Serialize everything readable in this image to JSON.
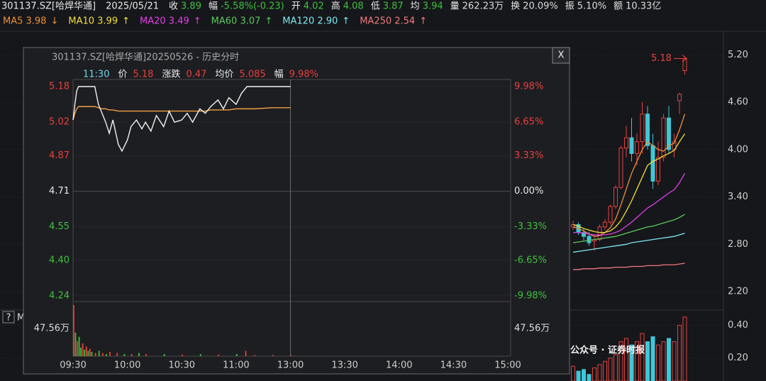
{
  "header": {
    "symbol": "301137.SZ[哈焊华通]",
    "date": "2025/05/21",
    "fields": [
      {
        "label": "收",
        "value": "3.89",
        "color": "#3ec13e"
      },
      {
        "label": "幅",
        "value": "-5.58%(-0.23)",
        "color": "#3ec13e"
      },
      {
        "label": "开",
        "value": "4.02",
        "color": "#3ec13e"
      },
      {
        "label": "高",
        "value": "4.08",
        "color": "#3ec13e"
      },
      {
        "label": "低",
        "value": "3.87",
        "color": "#3ec13e"
      },
      {
        "label": "均",
        "value": "3.94",
        "color": "#3ec13e"
      },
      {
        "label": "量",
        "value": "262.23万",
        "color": "#dddddd"
      },
      {
        "label": "换",
        "value": "20.09%",
        "color": "#dddddd"
      },
      {
        "label": "振",
        "value": "5.10%",
        "color": "#dddddd"
      },
      {
        "label": "额",
        "value": "10.33亿",
        "color": "#dddddd"
      }
    ]
  },
  "ma_legend": [
    {
      "label": "MA5 3.98",
      "arrow": "↓",
      "color": "#f0903a",
      "values": [
        3.02,
        3.0,
        2.97,
        2.93,
        2.9,
        2.91,
        2.95,
        3.01,
        3.12,
        3.3,
        3.5,
        3.7,
        3.85,
        4.0,
        4.1,
        4.05,
        4.0,
        3.98,
        4.05,
        4.08,
        4.25,
        4.45
      ]
    },
    {
      "label": "MA10 3.99",
      "arrow": "↑",
      "color": "#f2e03a",
      "values": [
        3.05,
        3.03,
        3.0,
        2.98,
        2.96,
        2.95,
        2.95,
        2.97,
        3.02,
        3.1,
        3.22,
        3.35,
        3.5,
        3.65,
        3.8,
        3.85,
        3.88,
        3.92,
        3.95,
        3.99,
        4.1,
        4.2
      ]
    },
    {
      "label": "MA20 3.49",
      "arrow": "↑",
      "color": "#e040e8",
      "values": [
        2.95,
        2.95,
        2.94,
        2.93,
        2.92,
        2.92,
        2.92,
        2.93,
        2.95,
        2.98,
        3.03,
        3.08,
        3.14,
        3.2,
        3.26,
        3.3,
        3.35,
        3.4,
        3.45,
        3.49,
        3.58,
        3.7
      ]
    },
    {
      "label": "MA60 3.07",
      "arrow": "↑",
      "color": "#5cc85c",
      "values": [
        2.82,
        2.83,
        2.84,
        2.85,
        2.86,
        2.87,
        2.88,
        2.89,
        2.9,
        2.92,
        2.94,
        2.96,
        2.98,
        3.0,
        3.02,
        3.03,
        3.05,
        3.07,
        3.09,
        3.11,
        3.14,
        3.18
      ]
    },
    {
      "label": "MA120 2.90",
      "arrow": "↑",
      "color": "#7de8f0",
      "values": [
        2.7,
        2.71,
        2.72,
        2.73,
        2.74,
        2.75,
        2.76,
        2.77,
        2.78,
        2.79,
        2.8,
        2.82,
        2.83,
        2.84,
        2.85,
        2.86,
        2.87,
        2.88,
        2.89,
        2.9,
        2.92,
        2.94
      ]
    },
    {
      "label": "MA250 2.54",
      "arrow": "↑",
      "color": "#f07a80",
      "values": [
        2.48,
        2.48,
        2.49,
        2.49,
        2.49,
        2.5,
        2.5,
        2.5,
        2.51,
        2.51,
        2.51,
        2.52,
        2.52,
        2.52,
        2.53,
        2.53,
        2.53,
        2.54,
        2.54,
        2.54,
        2.55,
        2.56
      ]
    }
  ],
  "kline": {
    "ylim": [
      2.03,
      5.49
    ],
    "yticks": [
      {
        "value": 5.2,
        "label": "5.20"
      },
      {
        "value": 4.6,
        "label": "4.60"
      },
      {
        "value": 4.0,
        "label": "4.00"
      },
      {
        "value": 3.4,
        "label": "3.40"
      },
      {
        "value": 2.8,
        "label": "2.80"
      },
      {
        "value": 2.2,
        "label": "2.20"
      }
    ],
    "limit_label": "5.18",
    "up_color": "#e8413c",
    "down_color": "#3ec8d8",
    "candles": [
      {
        "open": 3.02,
        "high": 3.1,
        "low": 2.98,
        "close": 3.05
      },
      {
        "open": 3.05,
        "high": 3.08,
        "low": 2.92,
        "close": 2.95
      },
      {
        "open": 2.95,
        "high": 3.0,
        "low": 2.85,
        "close": 2.9
      },
      {
        "open": 2.9,
        "high": 2.96,
        "low": 2.78,
        "close": 2.82
      },
      {
        "open": 2.84,
        "high": 2.9,
        "low": 2.72,
        "close": 2.86
      },
      {
        "open": 2.86,
        "high": 3.05,
        "low": 2.84,
        "close": 3.02
      },
      {
        "open": 3.02,
        "high": 3.12,
        "low": 2.98,
        "close": 3.08
      },
      {
        "open": 3.08,
        "high": 3.3,
        "low": 3.05,
        "close": 3.28
      },
      {
        "open": 3.28,
        "high": 3.55,
        "low": 3.25,
        "close": 3.52
      },
      {
        "open": 3.52,
        "high": 4.05,
        "low": 3.5,
        "close": 4.02
      },
      {
        "open": 4.02,
        "high": 4.3,
        "low": 3.9,
        "close": 4.15
      },
      {
        "open": 4.15,
        "high": 4.4,
        "low": 3.85,
        "close": 3.95
      },
      {
        "open": 3.95,
        "high": 4.2,
        "low": 3.8,
        "close": 4.1
      },
      {
        "open": 4.1,
        "high": 4.6,
        "low": 3.95,
        "close": 4.45
      },
      {
        "open": 4.45,
        "high": 4.55,
        "low": 4.0,
        "close": 4.05
      },
      {
        "open": 4.05,
        "high": 4.2,
        "low": 3.5,
        "close": 3.6
      },
      {
        "open": 3.6,
        "high": 4.1,
        "low": 3.55,
        "close": 3.9
      },
      {
        "open": 3.9,
        "high": 4.45,
        "low": 3.85,
        "close": 4.4
      },
      {
        "open": 4.4,
        "high": 4.55,
        "low": 3.95,
        "close": 4.0
      },
      {
        "open": 4.0,
        "high": 4.2,
        "low": 3.9,
        "close": 4.1
      },
      {
        "open": 4.62,
        "high": 4.72,
        "low": 4.45,
        "close": 4.7
      },
      {
        "open": 5.0,
        "high": 5.18,
        "low": 4.95,
        "close": 5.15
      }
    ]
  },
  "volume": {
    "ylim": [
      0.06,
      0.48
    ],
    "yticks": [
      {
        "value": 0.4,
        "label": "0.40"
      },
      {
        "value": 0.2,
        "label": "0.20"
      }
    ],
    "values": [
      0.15,
      0.12,
      0.13,
      0.1,
      0.14,
      0.16,
      0.18,
      0.2,
      0.22,
      0.3,
      0.32,
      0.28,
      0.3,
      0.35,
      0.3,
      0.33,
      0.28,
      0.3,
      0.32,
      0.3,
      0.4,
      0.45
    ]
  },
  "misc": {
    "help": "?",
    "m": "M"
  },
  "popup": {
    "title": "301137.SZ[哈焊华通]20250526 - 历史分时",
    "close": "X",
    "info": {
      "time": "11:30",
      "price_label": "价",
      "price": "5.18",
      "change_label": "涨跌",
      "change": "0.47",
      "avg_label": "均价",
      "avg": "5.085",
      "pct_label": "幅",
      "pct": "9.98%"
    },
    "ylim": [
      4.24,
      5.18
    ],
    "yticks": [
      5.18,
      5.02,
      4.87,
      4.71,
      4.55,
      {
        "value": 4.4,
        "label": "4.40"
      },
      4.24
    ],
    "pct_ticks": [
      "9.98%",
      "6.65%",
      "3.33%",
      "0.00%",
      "-3.33%",
      "-6.65%",
      "-9.98%"
    ],
    "xlim": [
      0,
      240
    ],
    "xticks": [
      {
        "value": 0,
        "label": "09:30"
      },
      {
        "value": 30,
        "label": "10:00"
      },
      {
        "value": 60,
        "label": "10:30"
      },
      {
        "value": 90,
        "label": "11:00"
      },
      {
        "value": 120,
        "label": "13:00"
      },
      {
        "value": 150,
        "label": "13:30"
      },
      {
        "value": 180,
        "label": "14:00"
      },
      {
        "value": 210,
        "label": "14:30"
      },
      {
        "value": 240,
        "label": "15:00"
      }
    ],
    "minutes": [
      0,
      1,
      2,
      3,
      5,
      8,
      10,
      12,
      14,
      16,
      18,
      20,
      22,
      25,
      27,
      30,
      32,
      35,
      38,
      40,
      43,
      46,
      50,
      53,
      56,
      60,
      63,
      66,
      70,
      73,
      76,
      80,
      83,
      86,
      90,
      93,
      96,
      100,
      110,
      120
    ],
    "price": [
      5.03,
      5.1,
      5.16,
      5.18,
      5.18,
      5.18,
      5.18,
      5.18,
      5.1,
      5.06,
      5.02,
      4.97,
      5.03,
      4.92,
      4.89,
      4.94,
      5.0,
      5.03,
      4.99,
      5.02,
      4.98,
      5.05,
      5.0,
      5.07,
      5.02,
      5.03,
      5.06,
      5.02,
      5.08,
      5.06,
      5.09,
      5.12,
      5.08,
      5.13,
      5.1,
      5.15,
      5.18,
      5.18,
      5.18,
      5.18
    ],
    "avg": [
      5.03,
      5.06,
      5.08,
      5.09,
      5.09,
      5.09,
      5.09,
      5.09,
      5.085,
      5.08,
      5.08,
      5.075,
      5.075,
      5.07,
      5.07,
      5.07,
      5.07,
      5.07,
      5.07,
      5.07,
      5.07,
      5.07,
      5.07,
      5.07,
      5.07,
      5.07,
      5.07,
      5.07,
      5.07,
      5.07,
      5.075,
      5.075,
      5.075,
      5.075,
      5.08,
      5.08,
      5.08,
      5.08,
      5.085,
      5.085
    ],
    "price_color": "#f2f2f2",
    "avg_color": "#f0a040",
    "volume_ylim": [
      0,
      47.56
    ],
    "volume_ticks": [
      {
        "value": 47.56,
        "label": "47.56万"
      }
    ],
    "volume_minutes": [
      0,
      1,
      2,
      3,
      4,
      5,
      6,
      7,
      8,
      9,
      10,
      12,
      14,
      16,
      18,
      20,
      24,
      28,
      32,
      36,
      40,
      50,
      60,
      70,
      80,
      90,
      95,
      100,
      110,
      120
    ],
    "volumes": [
      47.56,
      22,
      14,
      18,
      8,
      12,
      6,
      9,
      5,
      7,
      4,
      3,
      5,
      3,
      2,
      4,
      3,
      2,
      2,
      3,
      2,
      2,
      1.5,
      2,
      1.5,
      2,
      5,
      1,
      1,
      1
    ],
    "volume_colors": [
      "#e8413c",
      "#3ec13e",
      "#e8413c",
      "#3ec13e",
      "#3ec13e",
      "#e8413c",
      "#3ec13e",
      "#e8413c",
      "#3ec13e",
      "#e8413c",
      "#3ec13e",
      "#e8413c",
      "#3ec13e",
      "#e8413c",
      "#3ec13e",
      "#e8413c",
      "#e8413c",
      "#3ec13e",
      "#e8413c",
      "#3ec13e",
      "#e8413c",
      "#3ec13e",
      "#e8413c",
      "#3ec13e",
      "#e8413c",
      "#3ec13e",
      "#e8413c",
      "#e8413c",
      "#e8413c",
      "#e8413c"
    ]
  },
  "watermark": "公众号 · 证券时报"
}
